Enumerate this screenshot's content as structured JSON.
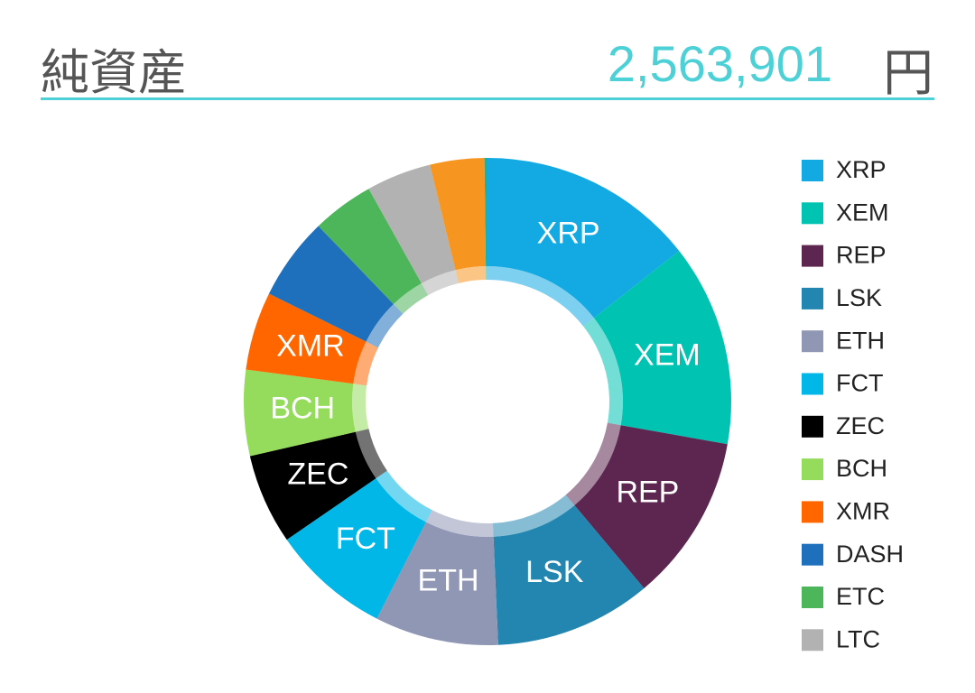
{
  "header": {
    "title": "純資産",
    "amount": "2,563,901",
    "unit": "円"
  },
  "chart_data": {
    "type": "donut",
    "categories": [
      "XRP",
      "XEM",
      "REP",
      "LSK",
      "ETH",
      "FCT",
      "ZEC",
      "BCH",
      "XMR",
      "DASH",
      "ETC",
      "LTC",
      null,
      null
    ],
    "values": [
      14.4,
      13.4,
      11.1,
      10.4,
      8.2,
      7.9,
      6.0,
      5.7,
      5.2,
      5.5,
      4.1,
      4.3,
      3.6,
      0.2
    ],
    "colors": [
      "#13a9e2",
      "#00c3b2",
      "#5c2650",
      "#2286b0",
      "#8f97b5",
      "#00b7e8",
      "#000000",
      "#95dc5d",
      "#ff6600",
      "#1e70bd",
      "#4db55a",
      "#b2b2b2",
      "#f79521",
      "#16b3a3"
    ],
    "legend": "right"
  }
}
